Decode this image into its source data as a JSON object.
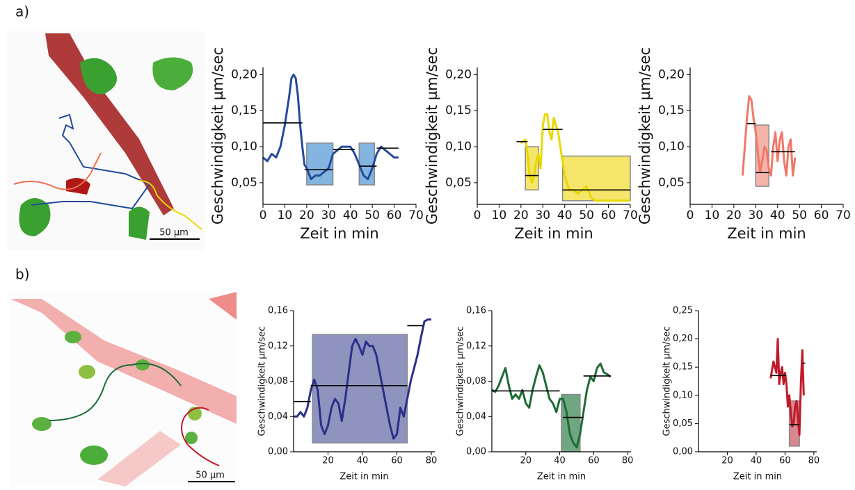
{
  "panel_labels": [
    "a)",
    "b)"
  ],
  "scale_bar_labels": [
    "50 µm",
    "50 µm"
  ],
  "chart_data": [
    {
      "type": "line",
      "y_label": "Geschwindigkeit µm/sec",
      "x_label": "Zeit in min",
      "color": "#234a9c",
      "box_color": "#5b9bd5",
      "xlim": [
        0,
        70
      ],
      "xticks": [
        0,
        10,
        20,
        30,
        40,
        50,
        60,
        70
      ],
      "ylim": [
        0.02,
        0.21
      ],
      "yticks": [
        {
          "value": 0.05,
          "label": "0,05"
        },
        {
          "value": 0.1,
          "label": "0,10"
        },
        {
          "value": 0.15,
          "label": "0,15"
        },
        {
          "value": 0.2,
          "label": "0,20"
        }
      ],
      "x": [
        0,
        2,
        4,
        6,
        8,
        10,
        12,
        13,
        14,
        15,
        16,
        17,
        18,
        19,
        20,
        22,
        24,
        26,
        28,
        30,
        32,
        34,
        36,
        38,
        40,
        42,
        44,
        46,
        48,
        50,
        52,
        54,
        56,
        58,
        60,
        62
      ],
      "values": [
        0.085,
        0.08,
        0.09,
        0.085,
        0.1,
        0.13,
        0.17,
        0.195,
        0.2,
        0.195,
        0.17,
        0.13,
        0.1,
        0.075,
        0.07,
        0.055,
        0.06,
        0.06,
        0.065,
        0.07,
        0.09,
        0.095,
        0.1,
        0.1,
        0.1,
        0.09,
        0.075,
        0.06,
        0.055,
        0.07,
        0.09,
        0.1,
        0.095,
        0.09,
        0.085,
        0.085
      ],
      "means": [
        {
          "x": [
            0,
            18
          ],
          "value": 0.133
        },
        {
          "x": [
            19,
            32
          ],
          "value": 0.068
        },
        {
          "x": [
            32,
            42
          ],
          "value": 0.096
        },
        {
          "x": [
            44,
            52
          ],
          "value": 0.073
        },
        {
          "x": [
            52,
            62
          ],
          "value": 0.098
        }
      ],
      "boxes": [
        {
          "x": [
            20,
            32
          ],
          "y": [
            0.047,
            0.105
          ]
        },
        {
          "x": [
            44,
            51
          ],
          "y": [
            0.047,
            0.105
          ]
        }
      ]
    },
    {
      "type": "line",
      "y_label": "Geschwindigkeit µm/sec",
      "x_label": "Zeit in min",
      "color": "#e8d800",
      "box_color": "#f2dc3a",
      "xlim": [
        0,
        70
      ],
      "xticks": [
        0,
        10,
        20,
        30,
        40,
        50,
        60,
        70
      ],
      "ylim": [
        0.02,
        0.21
      ],
      "yticks": [
        {
          "value": 0.05,
          "label": "0,05"
        },
        {
          "value": 0.1,
          "label": "0,10"
        },
        {
          "value": 0.15,
          "label": "0,15"
        },
        {
          "value": 0.2,
          "label": "0,20"
        }
      ],
      "x": [
        20,
        22,
        23,
        24,
        25,
        26,
        27,
        28,
        29,
        30,
        31,
        32,
        33,
        34,
        35,
        36,
        37,
        38,
        39,
        40,
        42,
        44,
        46,
        48,
        50,
        52,
        54,
        58,
        62,
        66,
        70
      ],
      "values": [
        0.105,
        0.11,
        0.09,
        0.06,
        0.05,
        0.06,
        0.08,
        0.09,
        0.07,
        0.13,
        0.145,
        0.145,
        0.12,
        0.11,
        0.14,
        0.13,
        0.12,
        0.1,
        0.08,
        0.06,
        0.04,
        0.04,
        0.035,
        0.04,
        0.045,
        0.03,
        0.025,
        0.025,
        0.025,
        0.025,
        0.025
      ],
      "means": [
        {
          "x": [
            18,
            23
          ],
          "value": 0.107
        },
        {
          "x": [
            22,
            28
          ],
          "value": 0.06
        },
        {
          "x": [
            30,
            39
          ],
          "value": 0.124
        },
        {
          "x": [
            39,
            70
          ],
          "value": 0.04
        }
      ],
      "boxes": [
        {
          "x": [
            22,
            28
          ],
          "y": [
            0.04,
            0.1
          ]
        },
        {
          "x": [
            39,
            70
          ],
          "y": [
            0.025,
            0.087
          ]
        }
      ]
    },
    {
      "type": "line",
      "y_label": "Geschwindigkeit µm/sec",
      "x_label": "Zeit in min",
      "color": "#f07868",
      "box_color": "#f29a8e",
      "xlim": [
        0,
        70
      ],
      "xticks": [
        0,
        10,
        20,
        30,
        40,
        50,
        60,
        70
      ],
      "ylim": [
        0.02,
        0.21
      ],
      "yticks": [
        {
          "value": 0.05,
          "label": "0,05"
        },
        {
          "value": 0.1,
          "label": "0,10"
        },
        {
          "value": 0.15,
          "label": "0,15"
        },
        {
          "value": 0.2,
          "label": "0,20"
        }
      ],
      "x": [
        24,
        25,
        26,
        27,
        28,
        29,
        30,
        31,
        32,
        33,
        34,
        35,
        36,
        37,
        38,
        39,
        40,
        41,
        42,
        43,
        44,
        45,
        46,
        47,
        48
      ],
      "values": [
        0.06,
        0.1,
        0.14,
        0.17,
        0.165,
        0.14,
        0.12,
        0.09,
        0.065,
        0.08,
        0.1,
        0.095,
        0.07,
        0.06,
        0.1,
        0.12,
        0.08,
        0.11,
        0.12,
        0.08,
        0.06,
        0.1,
        0.11,
        0.06,
        0.085
      ],
      "means": [
        {
          "x": [
            26,
            30
          ],
          "value": 0.132
        },
        {
          "x": [
            30,
            36
          ],
          "value": 0.064
        },
        {
          "x": [
            37,
            48
          ],
          "value": 0.093
        }
      ],
      "boxes": [
        {
          "x": [
            30,
            36
          ],
          "y": [
            0.045,
            0.13
          ]
        }
      ]
    },
    {
      "type": "line",
      "y_label": "Geschwindigkeit µm/sec",
      "x_label": "Zeit in min",
      "color": "#2b2f8a",
      "box_color": "#6870a8",
      "xlim": [
        0,
        82
      ],
      "xticks": [
        20,
        40,
        60,
        80
      ],
      "ylim": [
        0,
        0.16
      ],
      "yticks": [
        {
          "value": 0,
          "label": "0,00"
        },
        {
          "value": 0.04,
          "label": "0,04"
        },
        {
          "value": 0.08,
          "label": "0,08"
        },
        {
          "value": 0.12,
          "label": "0,12"
        },
        {
          "value": 0.16,
          "label": "0,16"
        }
      ],
      "x": [
        0,
        2,
        4,
        6,
        8,
        10,
        12,
        14,
        16,
        18,
        20,
        22,
        24,
        26,
        28,
        30,
        32,
        34,
        36,
        38,
        40,
        42,
        44,
        46,
        48,
        50,
        52,
        54,
        56,
        58,
        60,
        62,
        64,
        66,
        68,
        70,
        72,
        74,
        76,
        78,
        80
      ],
      "values": [
        0.04,
        0.04,
        0.045,
        0.04,
        0.05,
        0.07,
        0.082,
        0.07,
        0.03,
        0.02,
        0.03,
        0.05,
        0.06,
        0.055,
        0.035,
        0.06,
        0.09,
        0.12,
        0.128,
        0.12,
        0.11,
        0.125,
        0.12,
        0.12,
        0.11,
        0.09,
        0.07,
        0.05,
        0.03,
        0.015,
        0.02,
        0.05,
        0.04,
        0.06,
        0.08,
        0.095,
        0.11,
        0.13,
        0.148,
        0.15,
        0.15
      ],
      "means": [
        {
          "x": [
            0,
            10
          ],
          "value": 0.057
        },
        {
          "x": [
            10,
            66
          ],
          "value": 0.075
        },
        {
          "x": [
            66,
            75
          ],
          "value": 0.143
        }
      ],
      "boxes": [
        {
          "x": [
            11,
            66
          ],
          "y": [
            0.01,
            0.133
          ]
        }
      ]
    },
    {
      "type": "line",
      "y_label": "Geschwindigkeit µm/sec",
      "x_label": "Zeit in min",
      "color": "#1e6b35",
      "box_color": "#3f8a55",
      "xlim": [
        0,
        82
      ],
      "xticks": [
        20,
        40,
        60,
        80
      ],
      "ylim": [
        0,
        0.16
      ],
      "yticks": [
        {
          "value": 0,
          "label": "0,00"
        },
        {
          "value": 0.04,
          "label": "0,04"
        },
        {
          "value": 0.08,
          "label": "0,08"
        },
        {
          "value": 0.12,
          "label": "0,12"
        },
        {
          "value": 0.16,
          "label": "0,16"
        }
      ],
      "x": [
        0,
        2,
        4,
        6,
        8,
        10,
        12,
        14,
        16,
        18,
        20,
        22,
        24,
        26,
        28,
        30,
        32,
        34,
        36,
        38,
        40,
        42,
        44,
        46,
        48,
        50,
        52,
        54,
        56,
        58,
        60,
        62,
        64,
        66,
        68,
        70
      ],
      "values": [
        0.07,
        0.068,
        0.075,
        0.085,
        0.095,
        0.075,
        0.06,
        0.065,
        0.06,
        0.07,
        0.055,
        0.05,
        0.07,
        0.085,
        0.098,
        0.09,
        0.075,
        0.06,
        0.055,
        0.045,
        0.06,
        0.06,
        0.045,
        0.02,
        0.01,
        0.005,
        0.02,
        0.045,
        0.07,
        0.085,
        0.08,
        0.095,
        0.1,
        0.09,
        0.088,
        0.085
      ],
      "means": [
        {
          "x": [
            0,
            40
          ],
          "value": 0.069
        },
        {
          "x": [
            42,
            54
          ],
          "value": 0.039
        },
        {
          "x": [
            54,
            70
          ],
          "value": 0.086
        }
      ],
      "boxes": [
        {
          "x": [
            41,
            52
          ],
          "y": [
            0,
            0.065
          ]
        }
      ]
    },
    {
      "type": "line",
      "y_label": "Geschwindigkeit µm/sec",
      "x_label": "Zeit in min",
      "color": "#c01a2a",
      "box_color": "#c9606a",
      "xlim": [
        0,
        82
      ],
      "xticks": [
        20,
        40,
        60,
        80
      ],
      "ylim": [
        0,
        0.25
      ],
      "yticks": [
        {
          "value": 0,
          "label": "0,00"
        },
        {
          "value": 0.05,
          "label": "0,05"
        },
        {
          "value": 0.1,
          "label": "0,10"
        },
        {
          "value": 0.15,
          "label": "0,15"
        },
        {
          "value": 0.2,
          "label": "0,20"
        },
        {
          "value": 0.25,
          "label": "0,25"
        }
      ],
      "x": [
        50,
        52,
        54,
        55,
        56,
        57,
        58,
        59,
        60,
        61,
        62,
        63,
        64,
        65,
        66,
        67,
        68,
        69,
        70,
        71,
        72,
        73
      ],
      "values": [
        0.13,
        0.16,
        0.14,
        0.2,
        0.12,
        0.14,
        0.15,
        0.12,
        0.14,
        0.12,
        0.08,
        0.1,
        0.07,
        0.045,
        0.05,
        0.08,
        0.09,
        0.06,
        0.03,
        0.12,
        0.18,
        0.1
      ],
      "means": [
        {
          "x": [
            50,
            61
          ],
          "value": 0.135
        },
        {
          "x": [
            63,
            70
          ],
          "value": 0.048
        },
        {
          "x": [
            72,
            74
          ],
          "value": 0.157
        }
      ],
      "boxes": [
        {
          "x": [
            63,
            70
          ],
          "y": [
            0.01,
            0.09
          ]
        }
      ]
    }
  ]
}
